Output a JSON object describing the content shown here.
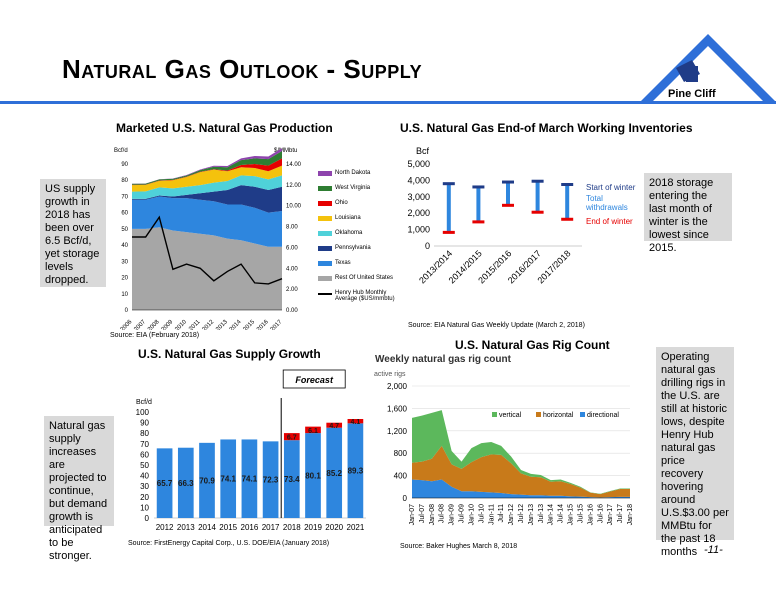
{
  "title": "Natural Gas Outlook - Supply",
  "logo": {
    "text": "Pine Cliff",
    "color": "#2e6fd8"
  },
  "page_number": "-11-",
  "callouts": {
    "us_supply": "US supply growth in 2018 has been over 6.5 Bcf/d, yet storage levels dropped.",
    "storage": "2018 storage entering the last month of winter is the lowest since 2015.",
    "supply_growth": "Natural gas supply increases are projected to continue, but demand growth is anticipated to be stronger.",
    "rigs": "Operating natural gas drilling rigs in the U.S. are still at historic lows, despite Henry Hub natural gas price recovery hovering around U.S.$3.00 per MMBtu for the past 18 months"
  },
  "chart_data": [
    {
      "id": "production",
      "type": "area",
      "title": "Marketed U.S. Natural Gas Production",
      "ylabel_left": "Bcf/d",
      "ylabel_right": "$/MMbtu",
      "ylim_left": [
        0,
        90
      ],
      "ylim_right": [
        0,
        14
      ],
      "yticks_left": [
        "0",
        "10",
        "20",
        "30",
        "40",
        "50",
        "60",
        "70",
        "80",
        "90"
      ],
      "yticks_right": [
        "0.00",
        "2.00",
        "4.00",
        "6.00",
        "8.00",
        "10.00",
        "12.00",
        "14.00"
      ],
      "x": [
        "2006",
        "2007",
        "2008",
        "2009",
        "2010",
        "2011",
        "2012",
        "2013",
        "2014",
        "2015",
        "2016",
        "2017"
      ],
      "series": [
        {
          "name": "Rest Of United States",
          "color": "#a6a6a6",
          "values": [
            50,
            50,
            51,
            49,
            48,
            47,
            46,
            44,
            43,
            41,
            39,
            39
          ]
        },
        {
          "name": "Texas",
          "color": "#2e86de",
          "values": [
            18,
            18,
            19,
            20,
            21,
            21,
            21,
            21,
            22,
            22,
            21,
            22
          ]
        },
        {
          "name": "Pennsylvania",
          "color": "#1f3c88",
          "values": [
            0.5,
            0.5,
            0.6,
            1,
            2,
            4,
            6,
            9,
            12,
            13,
            14,
            15
          ]
        },
        {
          "name": "Oklahoma",
          "color": "#4fd1d9",
          "values": [
            4.5,
            4.6,
            5,
            5,
            5,
            5,
            5.5,
            5.5,
            6,
            6.5,
            6.5,
            7
          ]
        },
        {
          "name": "Louisiana",
          "color": "#f4c20d",
          "values": [
            4,
            4,
            4,
            5,
            6,
            8,
            8,
            6,
            5,
            5,
            5,
            6
          ]
        },
        {
          "name": "Ohio",
          "color": "#e60000",
          "values": [
            0.2,
            0.2,
            0.2,
            0.2,
            0.2,
            0.2,
            0.3,
            0.5,
            1.4,
            2.5,
            3.5,
            4.5
          ]
        },
        {
          "name": "West Virginia",
          "color": "#2e7d32",
          "values": [
            0.6,
            0.6,
            0.7,
            0.7,
            0.7,
            1,
            1.5,
            2,
            3,
            3.5,
            4,
            4.5
          ]
        },
        {
          "name": "North Dakota",
          "color": "#8e44ad",
          "values": [
            0.1,
            0.1,
            0.1,
            0.2,
            0.3,
            0.4,
            0.6,
            0.8,
            1.1,
            1.4,
            1.6,
            1.8
          ]
        }
      ],
      "line_series": {
        "name": "Henry Hub Monthly Average ($US/mmbtu)",
        "color": "#000000",
        "values": [
          7.0,
          7.0,
          8.9,
          3.9,
          4.4,
          4.0,
          2.8,
          3.7,
          4.4,
          2.6,
          2.5,
          3.0
        ]
      },
      "source": "Source:  EIA (February 2018)"
    },
    {
      "id": "inventories",
      "type": "bar",
      "title": "U.S. Natural Gas End-of March Working Inventories",
      "ylabel": "Bcf",
      "ylim": [
        0,
        5000
      ],
      "yticks": [
        "0",
        "1,000",
        "2,000",
        "3,000",
        "4,000",
        "5,000"
      ],
      "categories": [
        "2013/2014",
        "2014/2015",
        "2015/2016",
        "2016/2017",
        "2017/2018"
      ],
      "start_of_winter": [
        3800,
        3600,
        3900,
        3950,
        3750
      ],
      "end_of_winter": [
        830,
        1470,
        2480,
        2060,
        1630
      ],
      "legend": {
        "start": "Start of winter",
        "total": "Total withdrawals",
        "end": "End of winter"
      },
      "colors": {
        "start": "#1f3c88",
        "total": "#2e86de",
        "end": "#e60000"
      },
      "source": "Source: EIA Natural Gas Weekly Update (March 2, 2018)"
    },
    {
      "id": "supply_growth",
      "type": "bar",
      "title": "U.S. Natural Gas Supply Growth",
      "ylabel": "Bcf/d",
      "ylim": [
        0,
        100
      ],
      "yticks": [
        "0",
        "10",
        "20",
        "30",
        "40",
        "50",
        "60",
        "70",
        "80",
        "90",
        "100"
      ],
      "categories": [
        "2012",
        "2013",
        "2014",
        "2015",
        "2016",
        "2017",
        "2018",
        "2019",
        "2020",
        "2021"
      ],
      "values": [
        65.7,
        66.3,
        70.9,
        74.1,
        74.1,
        72.3,
        73.4,
        80.1,
        85.2,
        89.3
      ],
      "value_labels": [
        "65.7",
        "66.3",
        "70.9",
        "74.1",
        "74.1",
        "72.3",
        "73.4",
        "80.1",
        "85.2",
        "89.3"
      ],
      "increments": [
        6.7,
        6.1,
        4.7,
        4.1
      ],
      "increment_labels": [
        "6.7",
        "6.1",
        "4.7",
        "4.1"
      ],
      "forecast_label": "Forecast",
      "colors": {
        "bar": "#2e86de",
        "increment": "#e60000"
      },
      "source": "Source:  FirstEnergy Capital Corp., U.S. DOE/EIA (January 2018)"
    },
    {
      "id": "rig_count",
      "type": "area",
      "title": "U.S. Natural Gas Rig Count",
      "subtitle": "Weekly natural gas rig count",
      "ylabel": "active rigs",
      "ylim": [
        0,
        2000
      ],
      "yticks": [
        "0",
        "400",
        "800",
        "1,200",
        "1,600",
        "2,000"
      ],
      "x": [
        "Jan-07",
        "Jul-07",
        "Jan-08",
        "Jul-08",
        "Jan-09",
        "Jul-09",
        "Jan-10",
        "Jul-10",
        "Jan-11",
        "Jul-11",
        "Jan-12",
        "Jul-12",
        "Jan-13",
        "Jul-13",
        "Jan-14",
        "Jul-14",
        "Jan-15",
        "Jul-15",
        "Jan-16",
        "Jul-16",
        "Jan-17",
        "Jul-17",
        "Jan-18"
      ],
      "series": [
        {
          "name": "directional",
          "color": "#2e86de",
          "values": [
            330,
            320,
            300,
            330,
            200,
            120,
            120,
            110,
            100,
            90,
            70,
            60,
            50,
            50,
            40,
            40,
            30,
            25,
            15,
            10,
            15,
            20,
            20
          ]
        },
        {
          "name": "horizontal",
          "color": "#c87a1a",
          "values": [
            300,
            330,
            400,
            600,
            400,
            400,
            520,
            620,
            680,
            680,
            550,
            380,
            330,
            320,
            250,
            260,
            220,
            160,
            80,
            60,
            100,
            140,
            140
          ]
        },
        {
          "name": "vertical",
          "color": "#5cb85c",
          "values": [
            800,
            820,
            820,
            640,
            240,
            130,
            250,
            250,
            220,
            160,
            120,
            60,
            50,
            40,
            30,
            30,
            20,
            15,
            5,
            5,
            10,
            10,
            10
          ]
        }
      ],
      "source": "Source: Baker Hughes March 8, 2018"
    }
  ]
}
